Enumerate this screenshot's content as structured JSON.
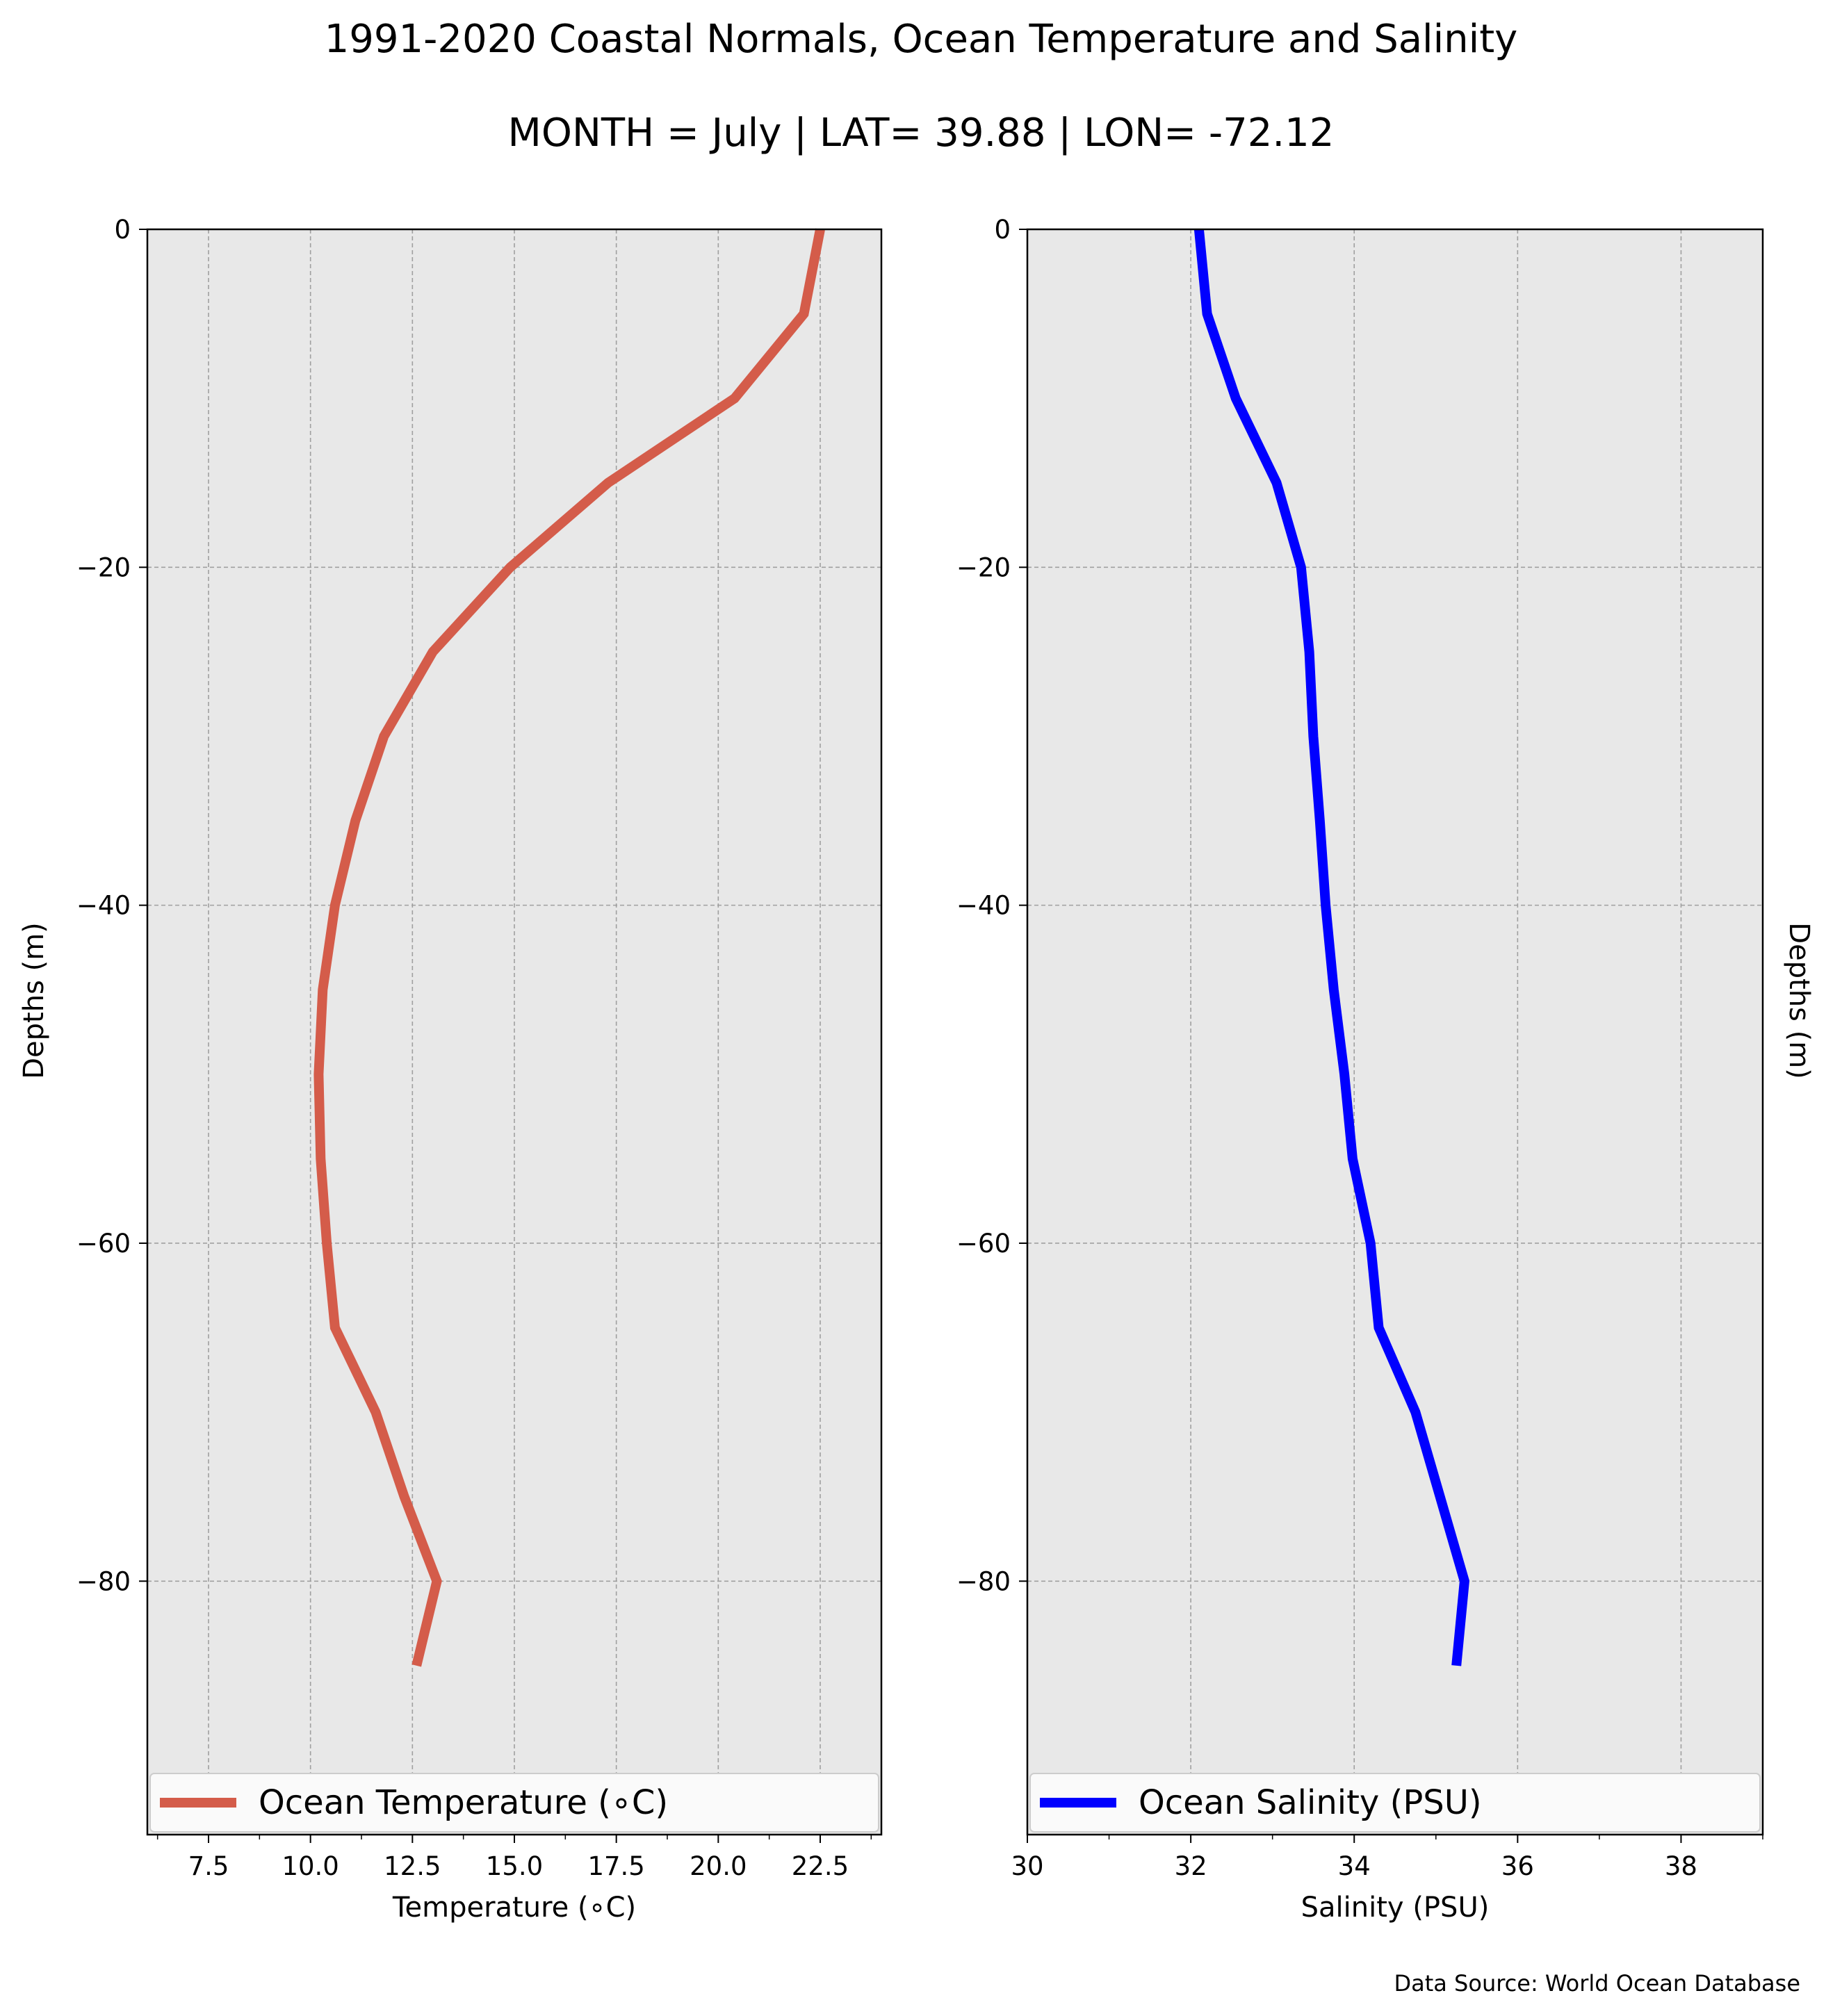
{
  "title": "1991-2020 Coastal Normals, Ocean Temperature and Salinity",
  "subtitle": "MONTH = July | LAT= 39.88 | LON= -72.12",
  "source": "Data Source: World Ocean Database",
  "chart_data": [
    {
      "type": "line",
      "orientation": "vertical-profile",
      "series": [
        {
          "name": "Ocean Temperature ($^\\circ$C)",
          "legend_label": "Ocean Temperature (∘C)",
          "color": "#d45c4a",
          "x": [
            22.5,
            22.1,
            20.4,
            17.3,
            14.9,
            13.0,
            11.8,
            11.1,
            10.6,
            10.3,
            10.2,
            10.25,
            10.4,
            10.6,
            11.6,
            12.3,
            13.1,
            12.6
          ],
          "y": [
            0,
            -5,
            -10,
            -15,
            -20,
            -25,
            -30,
            -35,
            -40,
            -45,
            -50,
            -55,
            -60,
            -65,
            -70,
            -75,
            -80,
            -85
          ]
        }
      ],
      "xlabel": "Temperature (∘C)",
      "ylabel": "Depths (m)",
      "xlim": [
        6,
        24
      ],
      "ylim": [
        -95,
        0
      ],
      "xticks": [
        7.5,
        10.0,
        12.5,
        15.0,
        17.5,
        20.0,
        22.5
      ],
      "xtick_labels": [
        "7.5",
        "10.0",
        "12.5",
        "15.0",
        "17.5",
        "20.0",
        "22.5"
      ],
      "yticks": [
        0,
        -20,
        -40,
        -60,
        -80
      ],
      "ytick_labels": [
        "0",
        "−20",
        "−40",
        "−60",
        "−80"
      ],
      "grid": true,
      "legend_position": "bottom"
    },
    {
      "type": "line",
      "orientation": "vertical-profile",
      "series": [
        {
          "name": "Ocean Salinity (PSU)",
          "legend_label": "Ocean Salinity (PSU)",
          "color": "#0000ff",
          "x": [
            32.1,
            32.2,
            32.55,
            33.05,
            33.35,
            33.45,
            33.5,
            33.58,
            33.65,
            33.75,
            33.88,
            33.98,
            34.2,
            34.3,
            34.75,
            35.05,
            35.35,
            35.25
          ],
          "y": [
            0,
            -5,
            -10,
            -15,
            -20,
            -25,
            -30,
            -35,
            -40,
            -45,
            -50,
            -55,
            -60,
            -65,
            -70,
            -75,
            -80,
            -85
          ]
        }
      ],
      "xlabel": "Salinity (PSU)",
      "ylabel": "Depths (m)",
      "xlim": [
        30,
        39
      ],
      "ylim": [
        -95,
        0
      ],
      "xticks": [
        30,
        32,
        34,
        36,
        38
      ],
      "xtick_labels": [
        "30",
        "32",
        "34",
        "36",
        "38"
      ],
      "yticks": [
        0,
        -20,
        -40,
        -60,
        -80
      ],
      "ytick_labels": [
        "0",
        "−20",
        "−40",
        "−60",
        "−80"
      ],
      "grid": true,
      "legend_position": "bottom"
    }
  ]
}
